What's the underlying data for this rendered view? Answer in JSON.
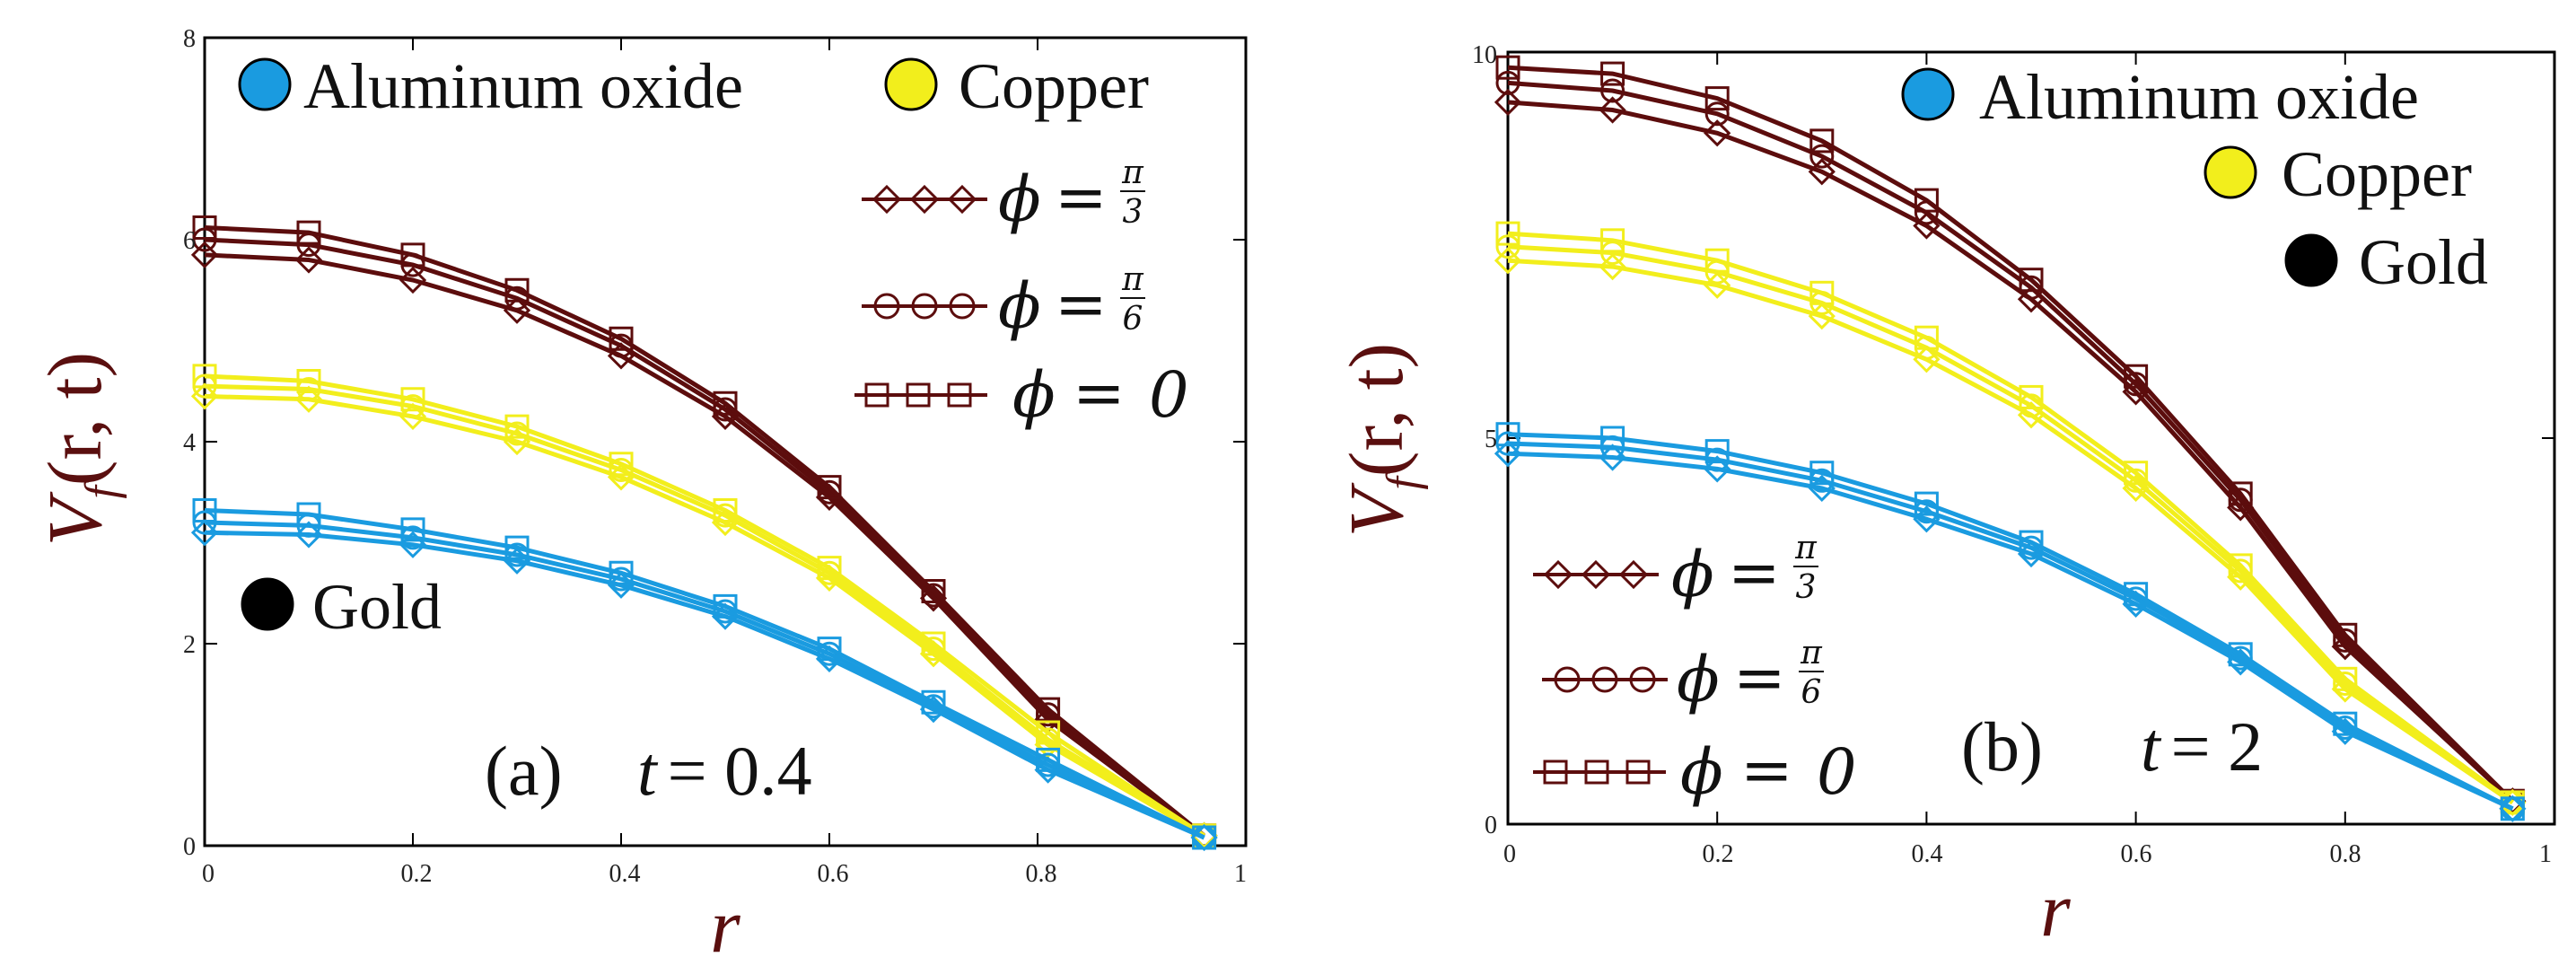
{
  "colors": {
    "aluminum": "#1a9be0",
    "copper": "#f2ee1c",
    "gold": "#5c0d0d",
    "frame": "#000000"
  },
  "legend": {
    "materials": [
      "Aluminum oxide",
      "Copper",
      "Gold"
    ],
    "phi_symbol": "ϕ",
    "phi_eq": "=",
    "phi_pi": "π",
    "phi_den3": "3",
    "phi_den6": "6",
    "phi_zero": "0"
  },
  "chart_data": [
    {
      "type": "line",
      "panel": "(a)",
      "annotation_t_var": "t",
      "annotation_t_value": "= 0.4",
      "xlabel": "r",
      "ylabel_main": "V",
      "ylabel_sub": "f",
      "ylabel_args": "(r, t)",
      "xlim": [
        0,
        1
      ],
      "ylim": [
        0,
        8
      ],
      "xticks": [
        "0",
        "0.2",
        "0.4",
        "0.6",
        "0.8",
        "1"
      ],
      "yticks": [
        "0",
        "2",
        "4",
        "6",
        "8"
      ],
      "marker_x": [
        0,
        0.1,
        0.2,
        0.3,
        0.4,
        0.5,
        0.6,
        0.7,
        0.81,
        0.96
      ],
      "series": [
        {
          "name": "Gold ϕ=π/3",
          "material": "gold",
          "marker": "diamond",
          "values": [
            5.85,
            5.8,
            5.6,
            5.3,
            4.85,
            4.25,
            3.45,
            2.45,
            1.25,
            0.1
          ]
        },
        {
          "name": "Gold ϕ=π/6",
          "material": "gold",
          "marker": "circle",
          "values": [
            6.0,
            5.95,
            5.75,
            5.42,
            4.95,
            4.32,
            3.5,
            2.48,
            1.3,
            0.1
          ]
        },
        {
          "name": "Gold ϕ=0",
          "material": "gold",
          "marker": "square",
          "values": [
            6.12,
            6.07,
            5.85,
            5.5,
            5.02,
            4.38,
            3.55,
            2.52,
            1.35,
            0.1
          ]
        },
        {
          "name": "Copper ϕ=π/3",
          "material": "copper",
          "marker": "diamond",
          "values": [
            4.45,
            4.42,
            4.25,
            4.0,
            3.65,
            3.2,
            2.65,
            1.9,
            1.0,
            0.1
          ]
        },
        {
          "name": "Copper ϕ=π/6",
          "material": "copper",
          "marker": "circle",
          "values": [
            4.55,
            4.52,
            4.35,
            4.08,
            3.72,
            3.27,
            2.7,
            1.95,
            1.05,
            0.1
          ]
        },
        {
          "name": "Copper ϕ=0",
          "material": "copper",
          "marker": "square",
          "values": [
            4.65,
            4.6,
            4.42,
            4.15,
            3.78,
            3.32,
            2.75,
            2.0,
            1.12,
            0.1
          ]
        },
        {
          "name": "Aluminum oxide ϕ=π/3",
          "material": "aluminum",
          "marker": "diamond",
          "values": [
            3.1,
            3.08,
            2.98,
            2.82,
            2.58,
            2.27,
            1.85,
            1.35,
            0.75,
            0.08
          ]
        },
        {
          "name": "Aluminum oxide ϕ=π/6",
          "material": "aluminum",
          "marker": "circle",
          "values": [
            3.2,
            3.17,
            3.05,
            2.88,
            2.64,
            2.32,
            1.9,
            1.38,
            0.8,
            0.08
          ]
        },
        {
          "name": "Aluminum oxide ϕ=0",
          "material": "aluminum",
          "marker": "square",
          "values": [
            3.32,
            3.28,
            3.13,
            2.95,
            2.7,
            2.37,
            1.95,
            1.42,
            0.85,
            0.08
          ]
        }
      ]
    },
    {
      "type": "line",
      "panel": "(b)",
      "annotation_t_var": "t",
      "annotation_t_value": "= 2",
      "xlabel": "r",
      "ylabel_main": "V",
      "ylabel_sub": "f",
      "ylabel_args": "(r, t)",
      "xlim": [
        0,
        1
      ],
      "ylim": [
        0,
        10
      ],
      "xticks": [
        "0",
        "0.2",
        "0.4",
        "0.6",
        "0.8",
        "1"
      ],
      "yticks": [
        "0",
        "5",
        "10"
      ],
      "marker_x": [
        0,
        0.1,
        0.2,
        0.3,
        0.4,
        0.5,
        0.6,
        0.7,
        0.8,
        0.96
      ],
      "series": [
        {
          "name": "Gold ϕ=π/3",
          "material": "gold",
          "marker": "diamond",
          "values": [
            9.35,
            9.25,
            8.95,
            8.45,
            7.75,
            6.8,
            5.6,
            4.1,
            2.3,
            0.3
          ]
        },
        {
          "name": "Gold ϕ=π/6",
          "material": "gold",
          "marker": "circle",
          "values": [
            9.6,
            9.5,
            9.2,
            8.65,
            7.92,
            6.95,
            5.7,
            4.2,
            2.38,
            0.3
          ]
        },
        {
          "name": "Gold ϕ=0",
          "material": "gold",
          "marker": "square",
          "values": [
            9.8,
            9.72,
            9.4,
            8.85,
            8.08,
            7.05,
            5.8,
            4.28,
            2.45,
            0.3
          ]
        },
        {
          "name": "Copper ϕ=π/3",
          "material": "copper",
          "marker": "diamond",
          "values": [
            7.3,
            7.22,
            6.98,
            6.58,
            6.02,
            5.3,
            4.35,
            3.2,
            1.75,
            0.28
          ]
        },
        {
          "name": "Copper ϕ=π/6",
          "material": "copper",
          "marker": "circle",
          "values": [
            7.48,
            7.4,
            7.15,
            6.75,
            6.17,
            5.42,
            4.45,
            3.28,
            1.82,
            0.28
          ]
        },
        {
          "name": "Copper ϕ=0",
          "material": "copper",
          "marker": "square",
          "values": [
            7.65,
            7.56,
            7.3,
            6.88,
            6.3,
            5.53,
            4.55,
            3.35,
            1.88,
            0.28
          ]
        },
        {
          "name": "Aluminum oxide ϕ=π/3",
          "material": "aluminum",
          "marker": "diamond",
          "values": [
            4.8,
            4.75,
            4.6,
            4.35,
            3.95,
            3.5,
            2.85,
            2.1,
            1.2,
            0.2
          ]
        },
        {
          "name": "Aluminum oxide ϕ=π/6",
          "material": "aluminum",
          "marker": "circle",
          "values": [
            4.93,
            4.88,
            4.72,
            4.45,
            4.05,
            3.58,
            2.92,
            2.15,
            1.25,
            0.2
          ]
        },
        {
          "name": "Aluminum oxide ϕ=0",
          "material": "aluminum",
          "marker": "square",
          "values": [
            5.05,
            5.0,
            4.83,
            4.55,
            4.15,
            3.65,
            2.98,
            2.2,
            1.3,
            0.2
          ]
        }
      ]
    }
  ]
}
